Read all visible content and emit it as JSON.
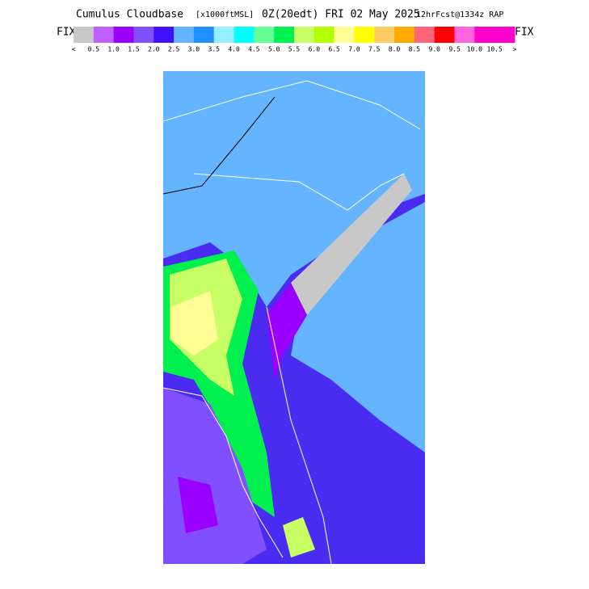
{
  "header": {
    "product": "Cumulus Cloudbase",
    "units": "[x1000ftMSL]",
    "valid": "0Z(20edt) FRI 02 May 2025",
    "run": "12hrFcst@1334z RAP"
  },
  "colorbar": {
    "left_label": "FIX",
    "right_label": "FIX",
    "colors": [
      "#c8c8c8",
      "#c060ff",
      "#9a00ff",
      "#8050ff",
      "#4010ff",
      "#64b4ff",
      "#1e90ff",
      "#96f0ff",
      "#00ffff",
      "#64ff96",
      "#00f050",
      "#c8ff64",
      "#b4ff00",
      "#ffff96",
      "#ffff00",
      "#ffcc64",
      "#ffaa00",
      "#ff6478",
      "#ff0000",
      "#ff64dc",
      "#ff00cc",
      "#ff00cc"
    ],
    "labels": [
      "<",
      "0.5",
      "1.0",
      "1.5",
      "2.0",
      "2.5",
      "3.0",
      "3.5",
      "4.0",
      "4.5",
      "5.0",
      "5.5",
      "6.0",
      "6.5",
      "7.0",
      "7.5",
      "8.0",
      "8.5",
      "9.0",
      "9.5",
      "10.0",
      "10.5",
      ">"
    ]
  }
}
